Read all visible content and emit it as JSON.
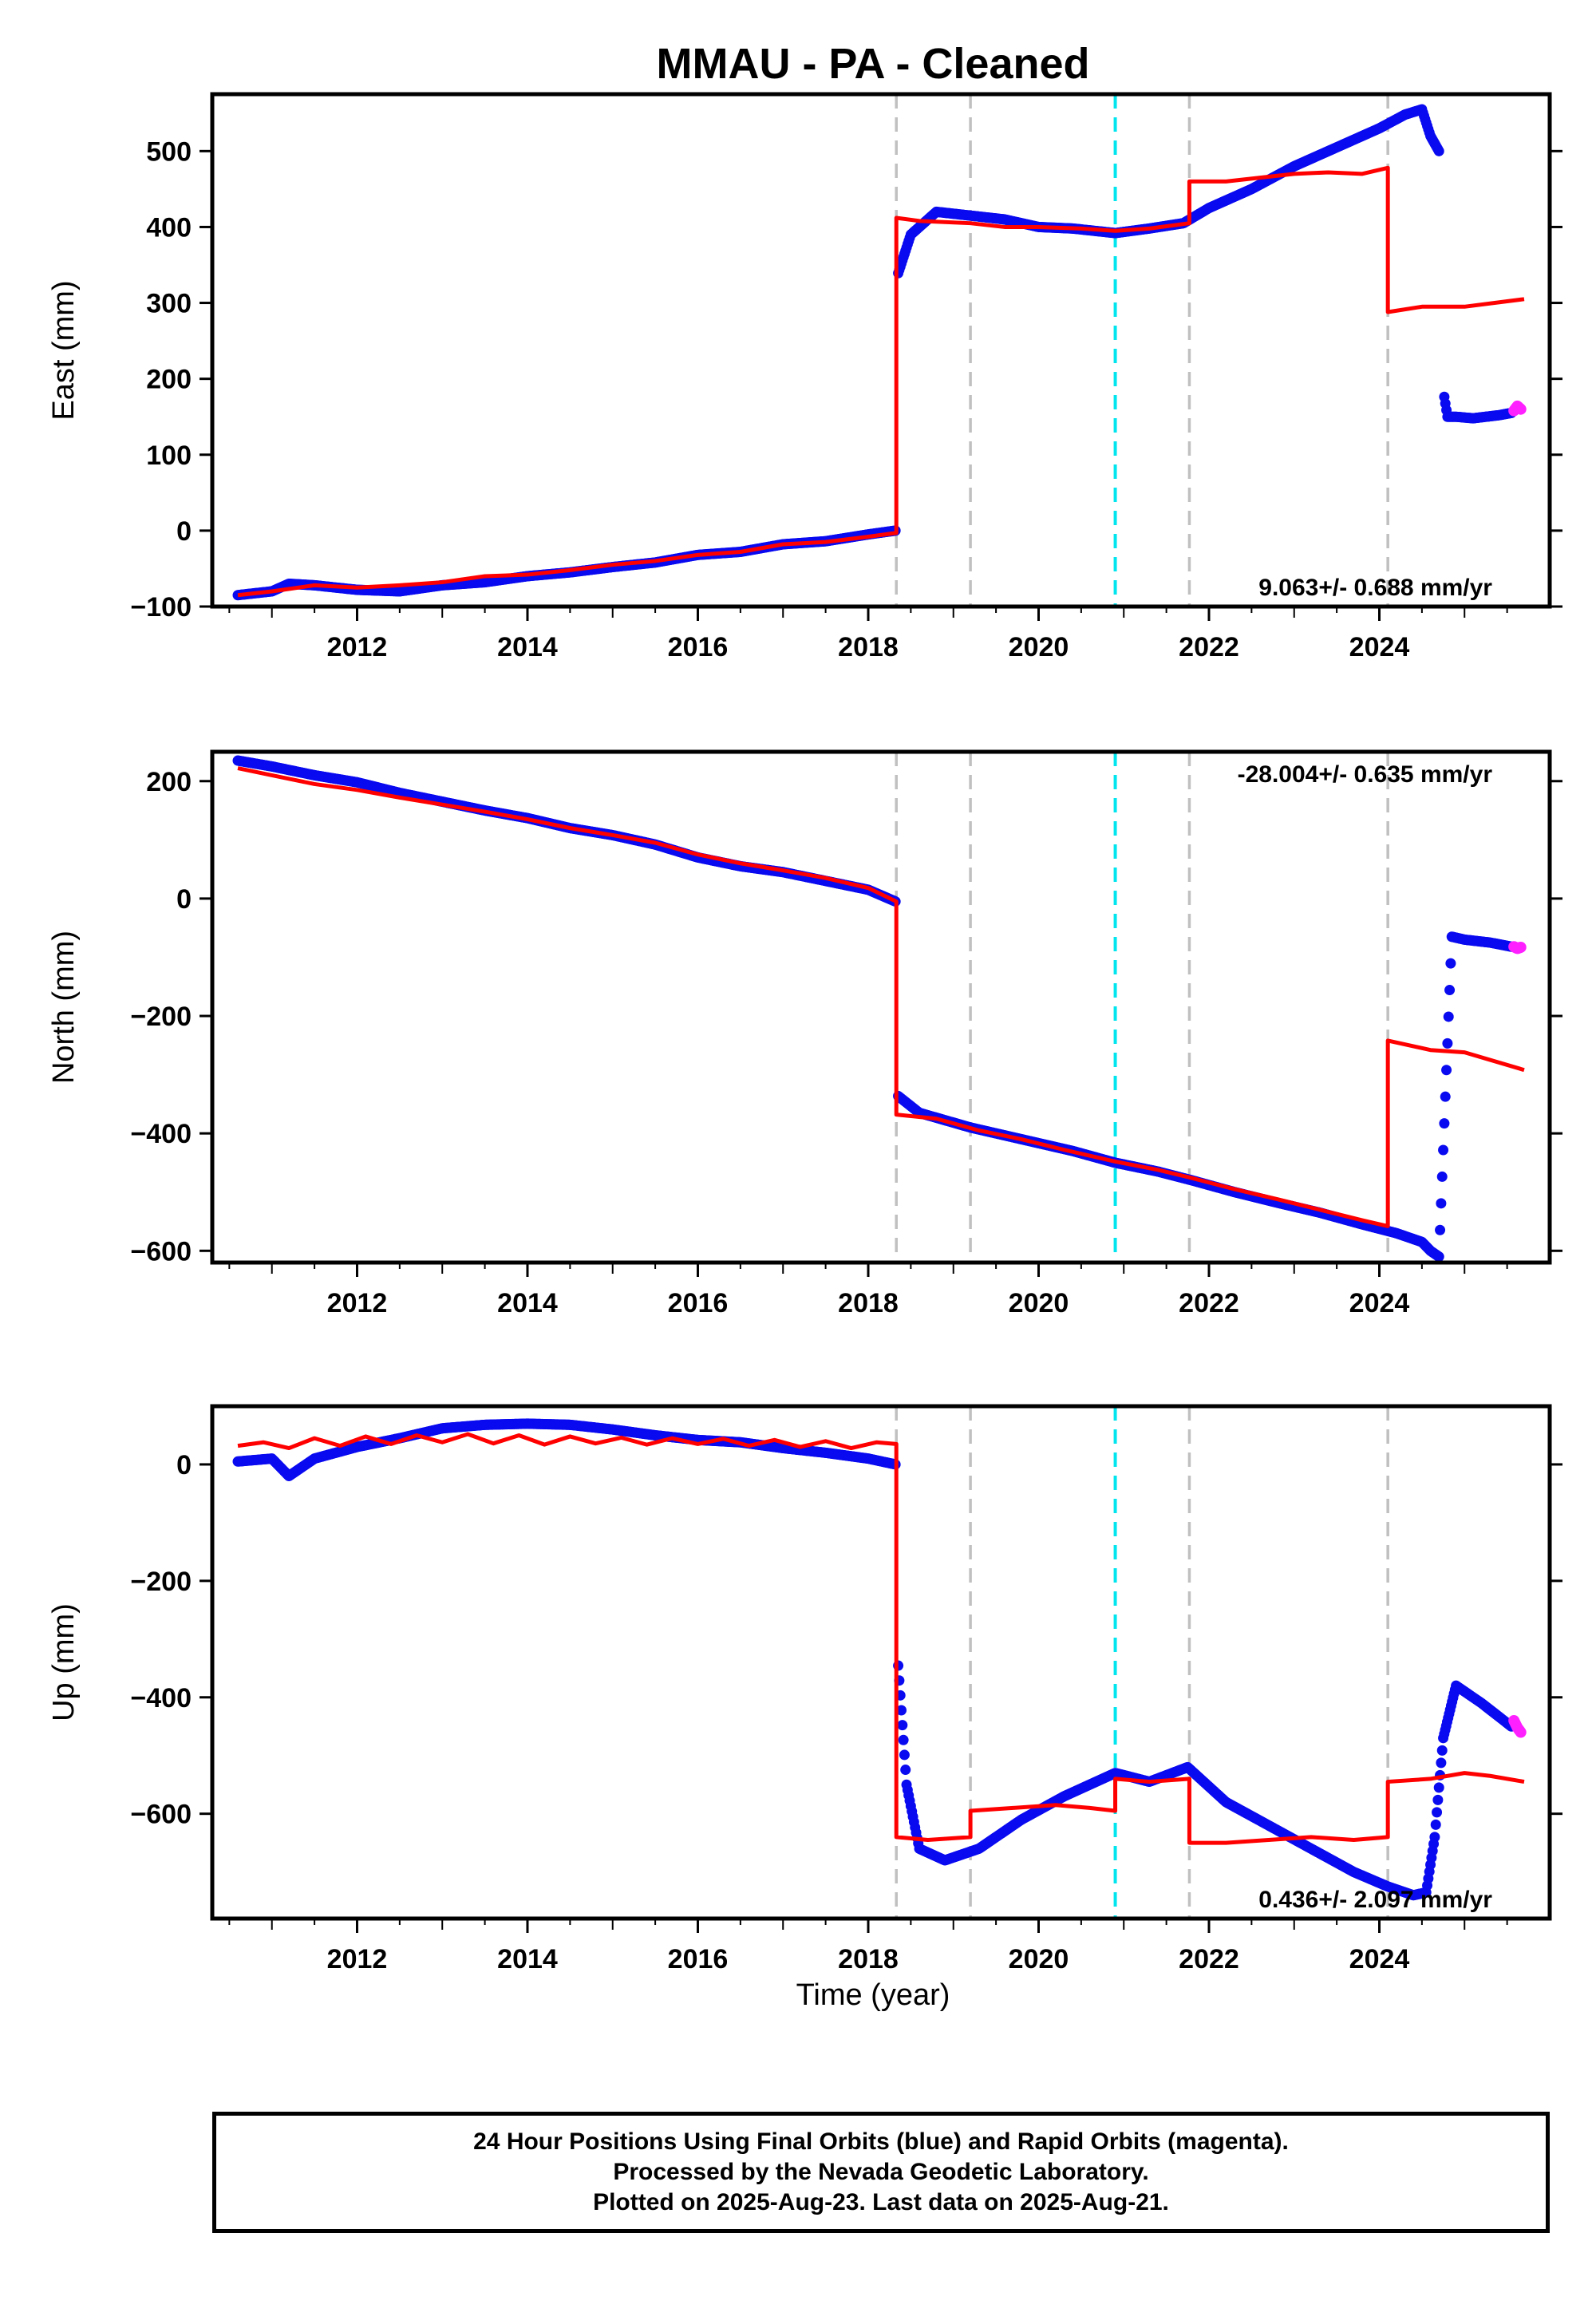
{
  "title": "MMAU  - PA - Cleaned",
  "xlabel": "Time (year)",
  "caption": [
    "24 Hour Positions Using Final Orbits (blue) and Rapid Orbits (magenta).",
    "Processed by the Nevada Geodetic Laboratory.",
    "Plotted on 2025-Aug-23. Last data on 2025-Aug-21."
  ],
  "colors": {
    "final": "#0a0af0",
    "rapid": "#ff20ff",
    "model": "#ff0000",
    "event_grey": "#c0c0c0",
    "event_cyan": "#00e5ee"
  },
  "chart_data": [
    {
      "type": "scatter",
      "ylabel": "East (mm)",
      "rate_label": "9.063+/- 0.688 mm/yr",
      "xlim": [
        2010.3,
        2026.0
      ],
      "ylim": [
        -100,
        575
      ],
      "xticks": [
        2012,
        2014,
        2016,
        2018,
        2020,
        2022,
        2024
      ],
      "yticks": [
        -100,
        0,
        100,
        200,
        300,
        400,
        500
      ],
      "vlines": [
        {
          "x": 2018.33,
          "color": "grey"
        },
        {
          "x": 2019.2,
          "color": "grey"
        },
        {
          "x": 2020.9,
          "color": "cyan"
        },
        {
          "x": 2021.77,
          "color": "grey"
        },
        {
          "x": 2024.1,
          "color": "grey"
        }
      ],
      "series": [
        {
          "name": "Final Orbits",
          "color": "blue",
          "x": [
            2010.6,
            2011.0,
            2011.2,
            2011.5,
            2012.0,
            2012.5,
            2013.0,
            2013.5,
            2014.0,
            2014.5,
            2015.0,
            2015.5,
            2016.0,
            2016.5,
            2017.0,
            2017.5,
            2018.0,
            2018.32,
            2018.34,
            2018.5,
            2018.8,
            2019.2,
            2019.6,
            2020.0,
            2020.4,
            2020.9,
            2021.3,
            2021.7,
            2022.0,
            2022.5,
            2023.0,
            2023.5,
            2024.0,
            2024.3,
            2024.5,
            2024.6,
            2024.7,
            2024.75,
            2024.8,
            2024.9,
            2025.1,
            2025.4,
            2025.55
          ],
          "y": [
            -85,
            -80,
            -70,
            -72,
            -78,
            -80,
            -72,
            -68,
            -60,
            -55,
            -48,
            -42,
            -32,
            -28,
            -18,
            -14,
            -5,
            0,
            335,
            390,
            420,
            415,
            410,
            400,
            398,
            392,
            398,
            405,
            425,
            450,
            480,
            505,
            530,
            548,
            555,
            520,
            500,
            185,
            150,
            150,
            148,
            152,
            155
          ]
        },
        {
          "name": "Rapid Orbits",
          "color": "magenta",
          "x": [
            2025.58,
            2025.62,
            2025.66
          ],
          "y": [
            158,
            164,
            160
          ]
        }
      ],
      "model": {
        "x": [
          2010.6,
          2011.0,
          2011.5,
          2012.0,
          2012.5,
          2013.0,
          2013.5,
          2014.0,
          2014.5,
          2015.0,
          2015.5,
          2016.0,
          2016.5,
          2017.0,
          2017.5,
          2018.0,
          2018.33,
          2018.33,
          2018.6,
          2019.2,
          2019.6,
          2020.0,
          2020.5,
          2020.9,
          2021.3,
          2021.77,
          2021.77,
          2022.2,
          2022.6,
          2023.0,
          2023.4,
          2023.8,
          2024.1,
          2024.1,
          2024.5,
          2025.0,
          2025.7
        ],
        "y": [
          -85,
          -80,
          -72,
          -75,
          -72,
          -68,
          -60,
          -58,
          -52,
          -45,
          -40,
          -32,
          -28,
          -18,
          -15,
          -8,
          -3,
          412,
          408,
          405,
          400,
          400,
          398,
          395,
          398,
          405,
          460,
          460,
          465,
          470,
          472,
          470,
          478,
          288,
          295,
          295,
          305
        ]
      }
    },
    {
      "type": "scatter",
      "ylabel": "North (mm)",
      "rate_label": "-28.004+/- 0.635 mm/yr",
      "xlim": [
        2010.3,
        2026.0
      ],
      "ylim": [
        -620,
        250
      ],
      "xticks": [
        2012,
        2014,
        2016,
        2018,
        2020,
        2022,
        2024
      ],
      "yticks": [
        -600,
        -400,
        -200,
        0,
        200
      ],
      "vlines": [
        {
          "x": 2018.33,
          "color": "grey"
        },
        {
          "x": 2019.2,
          "color": "grey"
        },
        {
          "x": 2020.9,
          "color": "cyan"
        },
        {
          "x": 2021.77,
          "color": "grey"
        },
        {
          "x": 2024.1,
          "color": "grey"
        }
      ],
      "series": [
        {
          "name": "Final Orbits",
          "color": "blue",
          "x": [
            2010.6,
            2011.0,
            2011.5,
            2012.0,
            2012.5,
            2013.0,
            2013.5,
            2014.0,
            2014.5,
            2015.0,
            2015.5,
            2016.0,
            2016.5,
            2017.0,
            2017.5,
            2018.0,
            2018.32,
            2018.34,
            2018.6,
            2019.2,
            2019.8,
            2020.4,
            2020.9,
            2021.4,
            2021.8,
            2022.3,
            2022.8,
            2023.3,
            2023.8,
            2024.2,
            2024.5,
            2024.6,
            2024.7,
            2024.85,
            2025.0,
            2025.3,
            2025.55
          ],
          "y": [
            235,
            225,
            210,
            198,
            180,
            165,
            150,
            137,
            120,
            108,
            92,
            70,
            55,
            45,
            30,
            15,
            -5,
            -335,
            -365,
            -390,
            -410,
            -430,
            -450,
            -465,
            -480,
            -500,
            -518,
            -535,
            -555,
            -570,
            -585,
            -600,
            -610,
            -65,
            -70,
            -75,
            -82
          ]
        },
        {
          "name": "Rapid Orbits",
          "color": "magenta",
          "x": [
            2025.58,
            2025.62,
            2025.66
          ],
          "y": [
            -82,
            -85,
            -83
          ]
        }
      ],
      "model": {
        "x": [
          2010.6,
          2011.0,
          2011.5,
          2012.0,
          2012.5,
          2013.0,
          2013.5,
          2014.0,
          2014.5,
          2015.0,
          2015.5,
          2016.0,
          2016.5,
          2017.0,
          2017.5,
          2018.0,
          2018.33,
          2018.33,
          2018.8,
          2019.3,
          2019.8,
          2020.3,
          2020.9,
          2021.4,
          2021.77,
          2022.3,
          2022.8,
          2023.3,
          2023.8,
          2024.1,
          2024.1,
          2024.6,
          2025.0,
          2025.7
        ],
        "y": [
          222,
          210,
          195,
          185,
          172,
          160,
          148,
          135,
          120,
          108,
          95,
          75,
          60,
          48,
          35,
          18,
          -5,
          -368,
          -375,
          -395,
          -410,
          -428,
          -448,
          -462,
          -475,
          -495,
          -512,
          -530,
          -548,
          -558,
          -242,
          -258,
          -262,
          -292
        ]
      }
    },
    {
      "type": "scatter",
      "ylabel": "Up (mm)",
      "rate_label": "0.436+/- 2.097 mm/yr",
      "xlim": [
        2010.3,
        2026.0
      ],
      "ylim": [
        -780,
        100
      ],
      "xticks": [
        2012,
        2014,
        2016,
        2018,
        2020,
        2022,
        2024
      ],
      "yticks": [
        -600,
        -400,
        -200,
        0
      ],
      "vlines": [
        {
          "x": 2018.33,
          "color": "grey"
        },
        {
          "x": 2019.2,
          "color": "grey"
        },
        {
          "x": 2020.9,
          "color": "cyan"
        },
        {
          "x": 2021.77,
          "color": "grey"
        },
        {
          "x": 2024.1,
          "color": "grey"
        }
      ],
      "series": [
        {
          "name": "Final Orbits",
          "color": "blue",
          "x": [
            2010.6,
            2011.0,
            2011.2,
            2011.5,
            2012.0,
            2012.5,
            2013.0,
            2013.5,
            2014.0,
            2014.5,
            2015.0,
            2015.5,
            2016.0,
            2016.5,
            2017.0,
            2017.5,
            2018.0,
            2018.32,
            2018.34,
            2018.45,
            2018.6,
            2018.9,
            2019.3,
            2019.8,
            2020.3,
            2020.9,
            2021.3,
            2021.75,
            2022.2,
            2022.7,
            2023.2,
            2023.7,
            2024.1,
            2024.4,
            2024.55,
            2024.65,
            2024.75,
            2024.9,
            2025.2,
            2025.55
          ],
          "y": [
            5,
            10,
            -20,
            10,
            30,
            45,
            62,
            68,
            70,
            68,
            60,
            50,
            42,
            38,
            28,
            20,
            10,
            0,
            -320,
            -550,
            -660,
            -680,
            -660,
            -610,
            -570,
            -530,
            -545,
            -520,
            -580,
            -620,
            -660,
            -700,
            -725,
            -740,
            -735,
            -640,
            -470,
            -380,
            -410,
            -450
          ]
        },
        {
          "name": "Rapid Orbits",
          "color": "magenta",
          "x": [
            2025.58,
            2025.62,
            2025.66
          ],
          "y": [
            -440,
            -452,
            -460
          ]
        }
      ],
      "model": {
        "x": [
          2010.6,
          2010.9,
          2011.2,
          2011.5,
          2011.8,
          2012.1,
          2012.4,
          2012.7,
          2013.0,
          2013.3,
          2013.6,
          2013.9,
          2014.2,
          2014.5,
          2014.8,
          2015.1,
          2015.4,
          2015.7,
          2016.0,
          2016.3,
          2016.6,
          2016.9,
          2017.2,
          2017.5,
          2017.8,
          2018.1,
          2018.33,
          2018.33,
          2018.7,
          2019.2,
          2019.2,
          2019.7,
          2020.2,
          2020.6,
          2020.9,
          2020.9,
          2021.3,
          2021.77,
          2021.77,
          2022.2,
          2022.7,
          2023.2,
          2023.7,
          2024.1,
          2024.1,
          2024.6,
          2025.0,
          2025.3,
          2025.7
        ],
        "y": [
          32,
          38,
          28,
          45,
          32,
          48,
          35,
          50,
          38,
          52,
          36,
          50,
          34,
          48,
          36,
          46,
          34,
          45,
          35,
          44,
          32,
          42,
          30,
          40,
          28,
          38,
          35,
          -640,
          -645,
          -640,
          -595,
          -590,
          -585,
          -590,
          -595,
          -540,
          -545,
          -540,
          -650,
          -650,
          -645,
          -640,
          -645,
          -640,
          -545,
          -540,
          -530,
          -535,
          -545
        ]
      }
    }
  ]
}
